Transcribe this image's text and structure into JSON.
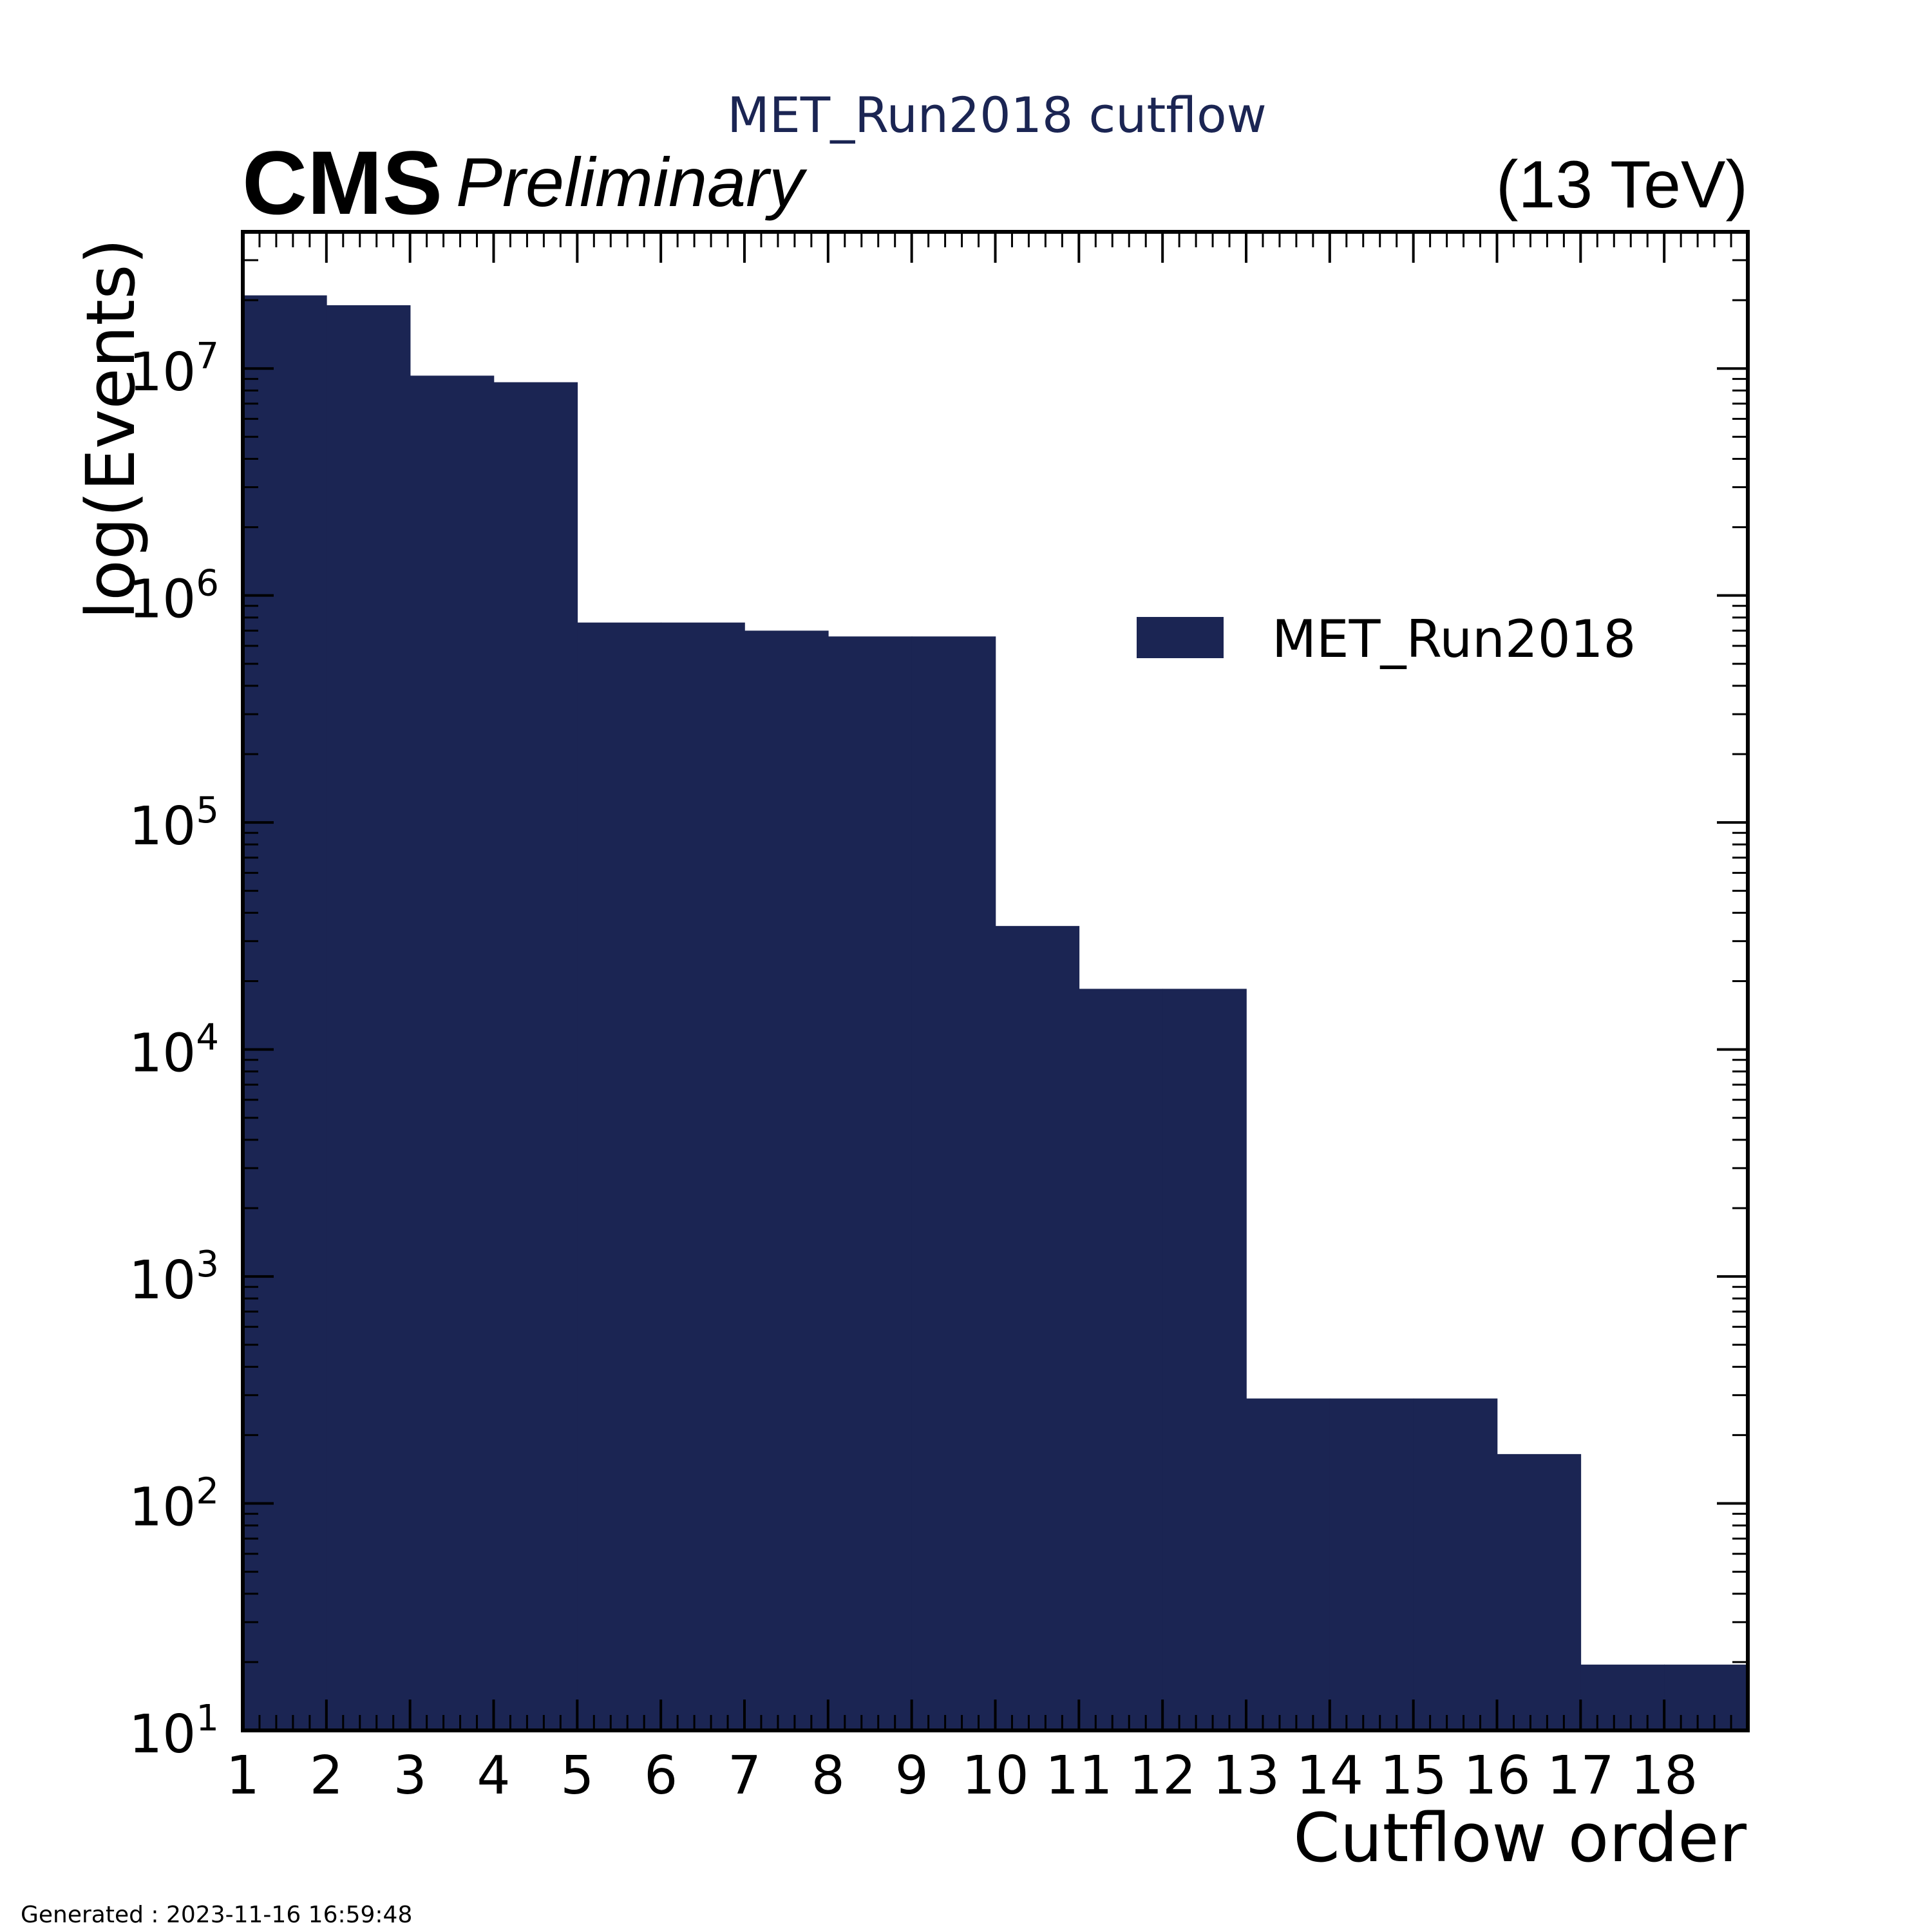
{
  "colors": {
    "bar": "#1b2553",
    "axis": "#000000",
    "title": "#1b2553",
    "background": "#ffffff"
  },
  "header": {
    "experiment": "CMS",
    "status": "Preliminary",
    "energy": "(13 TeV)"
  },
  "footer": {
    "generated": "Generated : 2023-11-16 16:59:48"
  },
  "chart_data": {
    "type": "bar",
    "title": "MET_Run2018 cutflow",
    "xlabel": "Cutflow order",
    "ylabel": "log(Events)",
    "yscale": "log",
    "xlim": [
      1,
      19
    ],
    "ylim": [
      10,
      40000000
    ],
    "x_ticks": [
      "1",
      "2",
      "3",
      "4",
      "5",
      "6",
      "7",
      "8",
      "9",
      "10",
      "11",
      "12",
      "13",
      "14",
      "15",
      "16",
      "17",
      "18"
    ],
    "y_ticks": [
      {
        "base": "10",
        "exp": "1"
      },
      {
        "base": "10",
        "exp": "2"
      },
      {
        "base": "10",
        "exp": "3"
      },
      {
        "base": "10",
        "exp": "4"
      },
      {
        "base": "10",
        "exp": "5"
      },
      {
        "base": "10",
        "exp": "6"
      },
      {
        "base": "10",
        "exp": "7"
      }
    ],
    "legend_position": "upper-right",
    "series": [
      {
        "name": "MET_Run2018",
        "bin_edges": [
          1,
          2,
          3,
          4,
          5,
          6,
          7,
          8,
          9,
          10,
          11,
          12,
          13,
          14,
          15,
          16,
          17,
          18,
          19
        ],
        "values": [
          21000000,
          19000000,
          9300000,
          8700000,
          760000,
          760000,
          700000,
          660000,
          660000,
          35000,
          18500,
          18500,
          290,
          290,
          290,
          165,
          19.5,
          19.5
        ]
      }
    ]
  }
}
